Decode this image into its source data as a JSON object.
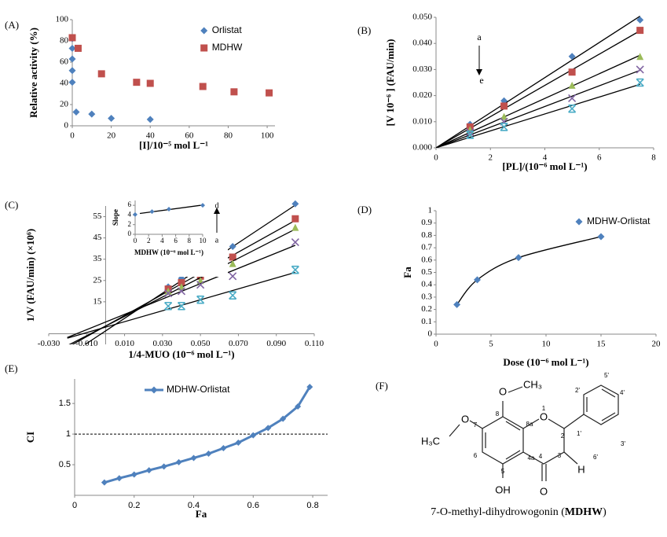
{
  "chart_data": [
    {
      "type": "scatter",
      "label": "(A)",
      "xlabel": "[I]/10⁻⁵ mol L⁻¹",
      "ylabel": "Relative activity (%)",
      "xlim": [
        0,
        104
      ],
      "xticks": [
        0,
        20,
        40,
        60,
        80,
        100
      ],
      "ylim": [
        0,
        100
      ],
      "yticks": [
        0,
        20,
        40,
        60,
        80,
        100
      ],
      "legend": "upper right",
      "series": [
        {
          "name": "Orlistat",
          "color": "#4f81bd",
          "marker": "diamond",
          "x": [
            0,
            0,
            0,
            0,
            0,
            2,
            10,
            20,
            40
          ],
          "values": [
            82,
            73,
            63,
            52,
            41,
            13,
            11,
            7,
            6
          ]
        },
        {
          "name": "MDHW",
          "color": "#c0504d",
          "marker": "square",
          "x": [
            0,
            3,
            15,
            33,
            40,
            67,
            83,
            101
          ],
          "values": [
            83,
            73,
            49,
            41,
            40,
            37,
            32,
            31
          ]
        }
      ]
    },
    {
      "type": "scatter",
      "label": "(B)",
      "xlabel": "[PL]/(10⁻⁶ mol L⁻¹)",
      "ylabel": "[V 10⁻⁶ ] (FAU/min)",
      "xlim": [
        0,
        8
      ],
      "xticks": [
        0,
        2,
        4,
        6,
        8
      ],
      "ylim": [
        0,
        0.05
      ],
      "yticks": [
        {
          "value": 0,
          "label": "0.000"
        },
        {
          "value": 0.01,
          "label": "0.010"
        },
        {
          "value": 0.02,
          "label": "0.020"
        },
        {
          "value": 0.03,
          "label": "0.030"
        },
        {
          "value": 0.04,
          "label": "0.040"
        },
        {
          "value": 0.05,
          "label": "0.050"
        }
      ],
      "trendline": "origin",
      "annotations": [
        "a",
        "e"
      ],
      "x": [
        1.25,
        2.5,
        5,
        7.5
      ],
      "series": [
        {
          "color": "#4f81bd",
          "marker": "diamond",
          "values": [
            0.009,
            0.018,
            0.035,
            0.049
          ]
        },
        {
          "color": "#c0504d",
          "marker": "square",
          "values": [
            0.008,
            0.016,
            0.029,
            0.045
          ]
        },
        {
          "color": "#9bbb59",
          "marker": "triangle",
          "values": [
            0.007,
            0.012,
            0.024,
            0.035
          ]
        },
        {
          "color": "#8064a2",
          "marker": "x",
          "values": [
            0.006,
            0.01,
            0.019,
            0.03
          ]
        },
        {
          "color": "#4bacc6",
          "marker": "star",
          "values": [
            0.005,
            0.008,
            0.015,
            0.025
          ]
        }
      ]
    },
    {
      "type": "scatter",
      "label": "(C)",
      "xlabel": "1/4-MUO (10⁻⁶ mol L⁻¹)",
      "ylabel": "1/V (FAU/min) (×10⁶)",
      "xlim": [
        -0.03,
        0.11
      ],
      "xticks": [
        {
          "value": -0.03,
          "label": "-0.030"
        },
        {
          "value": -0.01,
          "label": "-0.010"
        },
        {
          "value": 0.01,
          "label": "0.010"
        },
        {
          "value": 0.03,
          "label": "0.030"
        },
        {
          "value": 0.05,
          "label": "0.050"
        },
        {
          "value": 0.07,
          "label": "0.070"
        },
        {
          "value": 0.09,
          "label": "0.090"
        },
        {
          "value": 0.11,
          "label": "0.110"
        }
      ],
      "ylim": [
        -5,
        60
      ],
      "yticks": [
        15,
        25,
        35,
        45,
        55
      ],
      "trendline": "linear",
      "x": [
        0.033,
        0.04,
        0.05,
        0.067,
        0.1
      ],
      "series": [
        {
          "color": "#4f81bd",
          "marker": "diamond",
          "values": [
            22,
            26,
            28,
            41,
            61
          ]
        },
        {
          "color": "#c0504d",
          "marker": "square",
          "values": [
            21,
            24,
            27,
            36,
            54
          ]
        },
        {
          "color": "#9bbb59",
          "marker": "triangle",
          "values": [
            20,
            22,
            25,
            33,
            50
          ]
        },
        {
          "color": "#8064a2",
          "marker": "x",
          "values": [
            19,
            20,
            23,
            27,
            43
          ]
        },
        {
          "color": "#4bacc6",
          "marker": "star",
          "values": [
            13,
            13,
            16,
            18,
            30
          ]
        }
      ]
    },
    {
      "type": "scatter",
      "xlabel": "MDHW (10⁻⁶ mol L⁻¹)",
      "ylabel": "Slope",
      "xlim": [
        0,
        10
      ],
      "xticks": [
        0,
        2,
        4,
        6,
        8,
        10
      ],
      "ylim": [
        0,
        7
      ],
      "yticks": [
        0,
        2,
        4,
        6
      ],
      "trendline": "linear",
      "annotations": [
        "d",
        "a"
      ],
      "x": [
        0,
        2.5,
        5,
        10
      ],
      "series": [
        {
          "color": "#4f81bd",
          "marker": "diamond",
          "values": [
            4.1,
            4.7,
            5.2,
            6.0
          ]
        }
      ]
    },
    {
      "type": "scatter",
      "label": "(D)",
      "xlabel": "Dose (10⁻⁶ mol L⁻¹)",
      "ylabel": "Fa",
      "xlim": [
        0,
        20
      ],
      "xticks": [
        0,
        5,
        10,
        15,
        20
      ],
      "ylim": [
        0,
        1
      ],
      "yticks": [
        0,
        0.1,
        0.2,
        0.3,
        0.4,
        0.5,
        0.6,
        0.7,
        0.8,
        0.9,
        1
      ],
      "curve": true,
      "legend": "upper right",
      "series": [
        {
          "name": "MDHW-Orlistat",
          "color": "#4f81bd",
          "marker": "diamond",
          "x": [
            1.9,
            3.75,
            7.5,
            15
          ],
          "values": [
            0.24,
            0.44,
            0.62,
            0.79
          ]
        }
      ]
    },
    {
      "type": "line",
      "label": "(E)",
      "xlabel": "Fa",
      "ylabel": "CI",
      "xlim": [
        0,
        0.85
      ],
      "xticks": [
        0,
        0.2,
        0.4,
        0.6,
        0.8
      ],
      "ylim": [
        0,
        1.9
      ],
      "yticks": [
        0.5,
        1,
        1.5
      ],
      "refline": 1,
      "legend": "upper center",
      "series": [
        {
          "name": "MDHW-Orlistat",
          "color": "#4f81bd",
          "marker": "diamond",
          "x": [
            0.1,
            0.15,
            0.2,
            0.25,
            0.3,
            0.35,
            0.4,
            0.45,
            0.5,
            0.55,
            0.6,
            0.65,
            0.7,
            0.75,
            0.79
          ],
          "values": [
            0.21,
            0.28,
            0.34,
            0.41,
            0.47,
            0.54,
            0.61,
            0.68,
            0.77,
            0.86,
            0.98,
            1.1,
            1.25,
            1.45,
            1.77
          ]
        }
      ]
    }
  ],
  "structure": {
    "label": "(F)",
    "atoms": [
      "O",
      "CH₃",
      "H₃C",
      "O",
      "O",
      "O",
      "OH",
      "H"
    ],
    "numbers": [
      "1",
      "2",
      "3",
      "4",
      "4a",
      "5",
      "6",
      "7",
      "8",
      "8a",
      "1'",
      "2'",
      "3'",
      "4'",
      "5'",
      "6'"
    ],
    "caption": [
      "7-O-methyl-dihydrowogonin (",
      "MDHW",
      ")"
    ]
  }
}
